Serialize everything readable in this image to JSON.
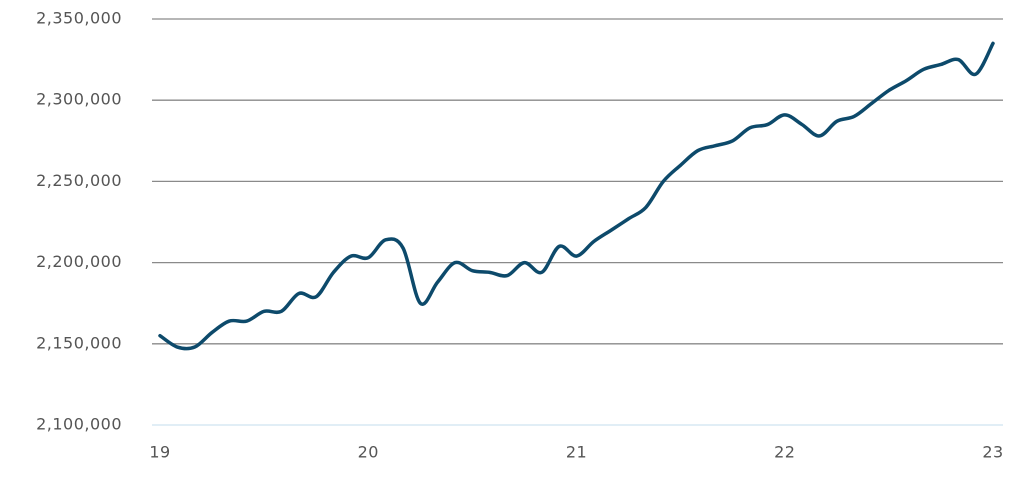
{
  "chart_data": {
    "type": "line",
    "x": [
      19,
      19.083,
      19.167,
      19.25,
      19.333,
      19.417,
      19.5,
      19.583,
      19.667,
      19.75,
      19.833,
      19.917,
      20,
      20.083,
      20.167,
      20.25,
      20.333,
      20.417,
      20.5,
      20.583,
      20.667,
      20.75,
      20.833,
      20.917,
      21,
      21.083,
      21.167,
      21.25,
      21.333,
      21.417,
      21.5,
      21.583,
      21.667,
      21.75,
      21.833,
      21.917,
      22,
      22.083,
      22.167,
      22.25,
      22.333,
      22.417,
      22.5,
      22.583,
      22.667,
      22.75,
      22.833,
      22.917,
      23
    ],
    "series": [
      {
        "color": "#0d4a6b",
        "values": [
          2155000,
          2148000,
          2148000,
          2157000,
          2164000,
          2164000,
          2170000,
          2170000,
          2181000,
          2179000,
          2194000,
          2204000,
          2203000,
          2214000,
          2209000,
          2175000,
          2188000,
          2200000,
          2195000,
          2194000,
          2192000,
          2200000,
          2194000,
          2210000,
          2204000,
          2213000,
          2220000,
          2227000,
          2234000,
          2250000,
          2260000,
          2269000,
          2272000,
          2275000,
          2283000,
          2285000,
          2291000,
          2285000,
          2278000,
          2287000,
          2290000,
          2298000,
          2306000,
          2312000,
          2319000,
          2322000,
          2325000,
          2316000,
          2335000
        ]
      }
    ],
    "xlim": [
      19,
      23
    ],
    "xticks": [
      19,
      20,
      21,
      22,
      23
    ],
    "ylim": [
      2100000,
      2350000
    ],
    "yticks": [
      {
        "value": 2100000,
        "label": "2,100,000"
      },
      {
        "value": 2150000,
        "label": "2,150,000"
      },
      {
        "value": 2200000,
        "label": "2,200,000"
      },
      {
        "value": 2250000,
        "label": "2,250,000"
      },
      {
        "value": 2300000,
        "label": "2,300,000"
      },
      {
        "value": 2350000,
        "label": "2,350,000"
      }
    ],
    "grid": true
  }
}
